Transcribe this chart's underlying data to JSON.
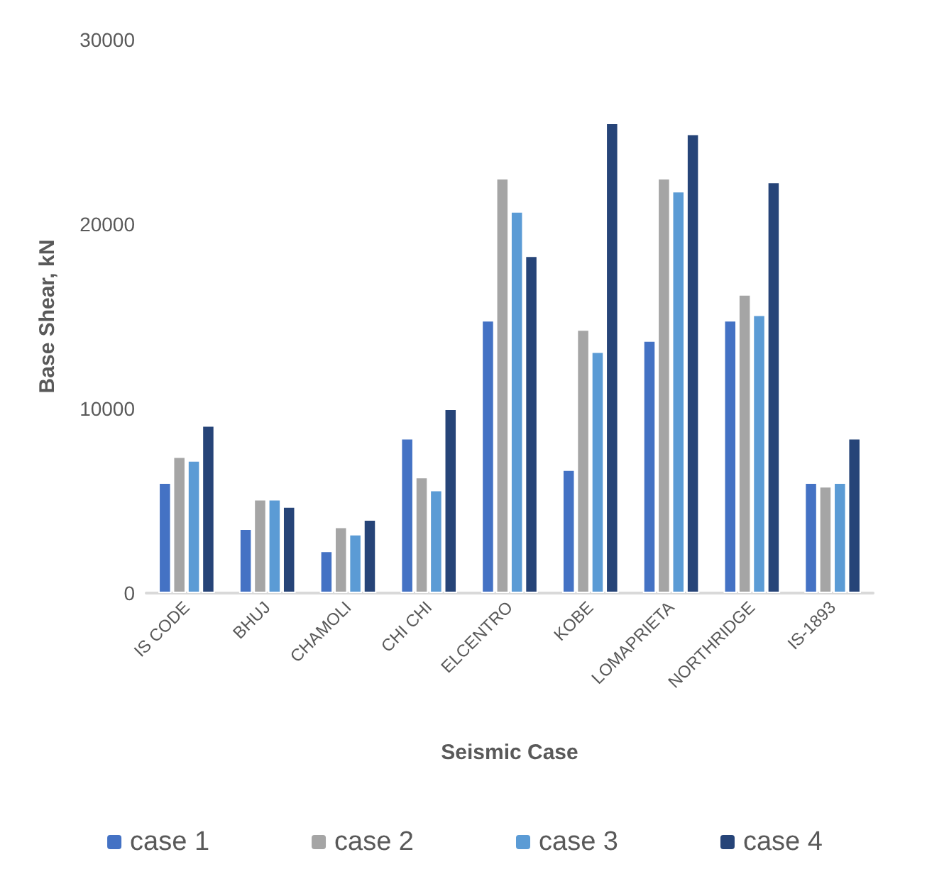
{
  "chart_data": {
    "type": "bar",
    "xlabel": "Seismic Case",
    "ylabel": "Base Shear, kN",
    "categories": [
      "IS CODE",
      "BHUJ",
      "CHAMOLI",
      "CHI CHI",
      "ELCENTRO",
      "KOBE",
      "LOMAPRIETA",
      "NORTHRIDGE",
      "IS-1893"
    ],
    "series": [
      {
        "name": "case 1",
        "color": "#4472c4",
        "values": [
          6000,
          3500,
          2300,
          8400,
          14800,
          6700,
          13700,
          14800,
          6000
        ]
      },
      {
        "name": "case 2",
        "color": "#a5a5a5",
        "values": [
          7400,
          5100,
          3600,
          6300,
          22500,
          14300,
          22500,
          16200,
          5800
        ]
      },
      {
        "name": "case 3",
        "color": "#5b9bd5",
        "values": [
          7200,
          5100,
          3200,
          5600,
          20700,
          13100,
          21800,
          15100,
          6000
        ]
      },
      {
        "name": "case 4",
        "color": "#264478",
        "values": [
          9100,
          4700,
          4000,
          10000,
          18300,
          25500,
          24900,
          22300,
          8400
        ]
      }
    ],
    "ylim": [
      0,
      30000
    ],
    "yticks": [
      0,
      10000,
      20000,
      30000
    ],
    "grid": false,
    "legend": "bottom"
  }
}
